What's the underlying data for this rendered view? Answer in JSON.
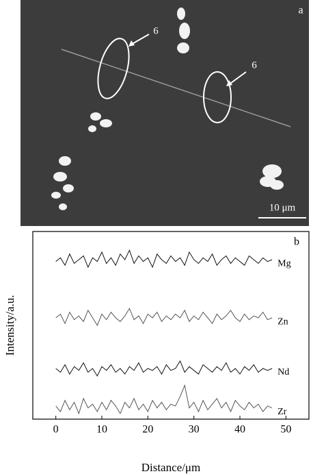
{
  "micrograph": {
    "label": "a",
    "annotations": [
      "6",
      "6"
    ],
    "scale_bar": "10 μm"
  },
  "chart_data": {
    "type": "line",
    "label": "b",
    "xlabel": "Distance/μm",
    "ylabel": "Intensity/a.u.",
    "xlim": [
      -5,
      55
    ],
    "xticks": [
      0,
      10,
      20,
      30,
      40,
      50
    ],
    "ylim": [
      0,
      100
    ],
    "x": [
      0,
      1,
      2,
      3,
      4,
      5,
      6,
      7,
      8,
      9,
      10,
      11,
      12,
      13,
      14,
      15,
      16,
      17,
      18,
      19,
      20,
      21,
      22,
      23,
      24,
      25,
      26,
      27,
      28,
      29,
      30,
      31,
      32,
      33,
      34,
      35,
      36,
      37,
      38,
      39,
      40,
      41,
      42,
      43,
      44,
      45,
      46,
      47
    ],
    "series": [
      {
        "name": "Mg",
        "color": "#111111",
        "values": [
          84,
          86,
          82,
          88,
          83,
          85,
          87,
          81,
          86,
          84,
          89,
          83,
          86,
          82,
          88,
          85,
          90,
          83,
          87,
          84,
          86,
          81,
          88,
          85,
          83,
          87,
          84,
          86,
          82,
          89,
          85,
          83,
          86,
          84,
          88,
          82,
          85,
          87,
          83,
          86,
          84,
          82,
          87,
          85,
          83,
          86,
          84,
          85
        ]
      },
      {
        "name": "Zn",
        "color": "#555555",
        "values": [
          54,
          56,
          51,
          57,
          53,
          55,
          52,
          58,
          54,
          50,
          56,
          53,
          57,
          54,
          52,
          55,
          59,
          53,
          55,
          51,
          56,
          54,
          57,
          52,
          55,
          53,
          56,
          54,
          58,
          52,
          55,
          53,
          57,
          54,
          51,
          56,
          53,
          55,
          58,
          54,
          52,
          56,
          53,
          55,
          54,
          57,
          53,
          54
        ]
      },
      {
        "name": "Nd",
        "color": "#111111",
        "values": [
          27,
          25,
          29,
          24,
          28,
          26,
          30,
          25,
          27,
          23,
          28,
          26,
          29,
          25,
          27,
          24,
          28,
          26,
          30,
          25,
          27,
          26,
          28,
          24,
          29,
          26,
          27,
          31,
          25,
          28,
          26,
          24,
          29,
          27,
          25,
          28,
          26,
          30,
          25,
          27,
          24,
          28,
          26,
          29,
          25,
          27,
          26,
          27
        ]
      },
      {
        "name": "Zr",
        "color": "#555555",
        "values": [
          7,
          4,
          10,
          5,
          9,
          3,
          11,
          6,
          8,
          4,
          9,
          5,
          10,
          7,
          3,
          9,
          6,
          11,
          5,
          8,
          4,
          10,
          6,
          9,
          5,
          8,
          7,
          12,
          18,
          6,
          9,
          4,
          10,
          5,
          8,
          11,
          6,
          9,
          4,
          10,
          7,
          5,
          9,
          6,
          8,
          4,
          7,
          6
        ]
      }
    ]
  }
}
